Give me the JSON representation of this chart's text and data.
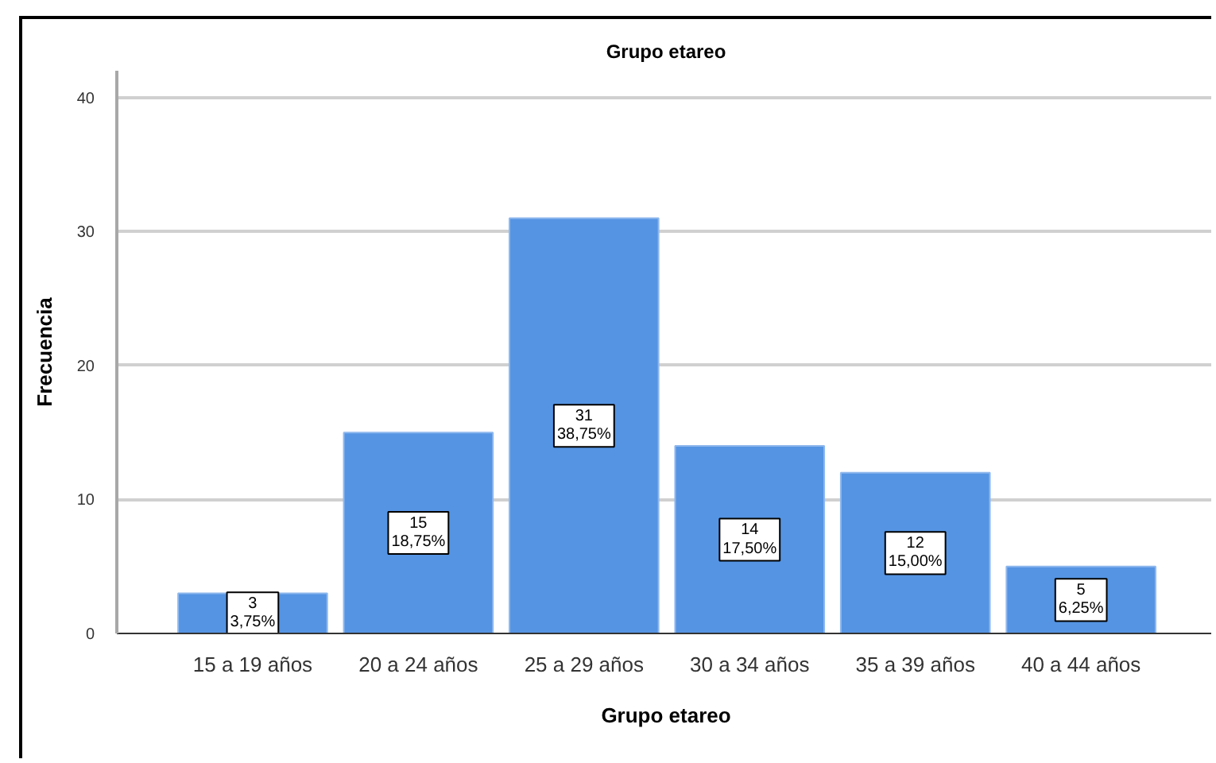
{
  "chart_data": {
    "type": "bar",
    "title": "Grupo etareo",
    "xlabel": "Grupo etareo",
    "ylabel": "Frecuencia",
    "categories": [
      "15 a 19 años",
      "20 a 24 años",
      "25 a 29 años",
      "30 a 34 años",
      "35 a 39 años",
      "40 a 44 años"
    ],
    "values": [
      3,
      15,
      31,
      14,
      12,
      5
    ],
    "color": "#5594e3",
    "value_labels": [
      "3\n3,75%",
      "15\n18,75%",
      "31\n38,75%",
      "14\n17,50%",
      "12\n15,00%",
      "5\n6,25%"
    ],
    "ylim": [
      0,
      42
    ],
    "yticks": [
      0,
      10,
      20,
      30,
      40
    ],
    "grid": "y"
  }
}
